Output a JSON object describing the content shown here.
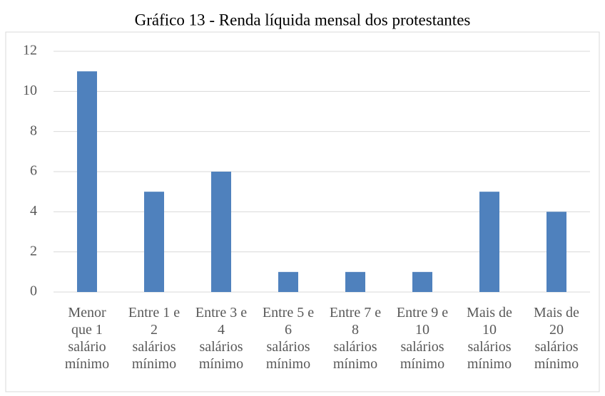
{
  "chart_data": {
    "type": "bar",
    "title": "Gráfico 13 - Renda líquida mensal dos protestantes",
    "categories": [
      "Menor que 1 salário mínimo",
      "Entre 1 e 2 salários mínimo",
      "Entre 3 e 4 salários mínimo",
      "Entre 5 e 6 salários mínimo",
      "Entre 7 e 8 salários mínimo",
      "Entre 9 e 10 salários mínimo",
      "Mais de 10 salários mínimo",
      "Mais de 20 salários mínimo"
    ],
    "values": [
      11,
      5,
      6,
      1,
      1,
      1,
      5,
      4
    ],
    "color": "#4f81bd",
    "ylim": [
      0,
      12
    ],
    "yticks": [
      0,
      2,
      4,
      6,
      8,
      10,
      12
    ],
    "grid": true
  }
}
